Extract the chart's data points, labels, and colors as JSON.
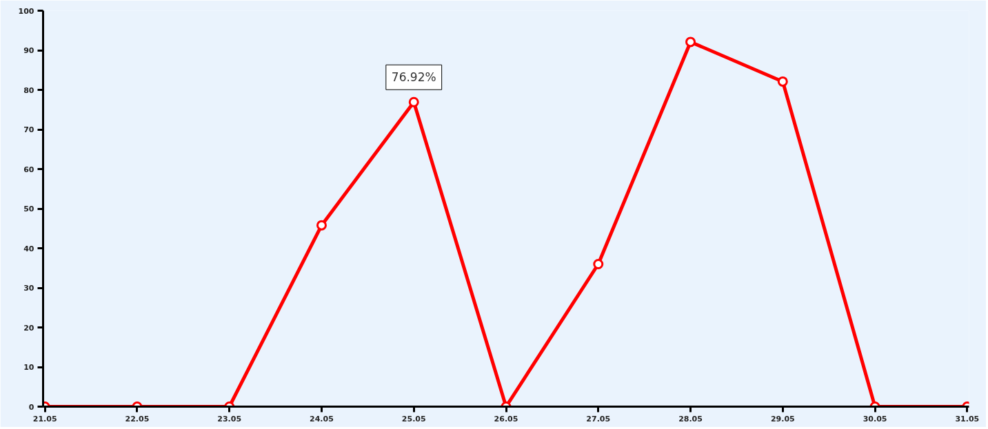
{
  "chart_data": {
    "type": "line",
    "categories": [
      "21.05",
      "22.05",
      "23.05",
      "24.05",
      "25.05",
      "26.05",
      "27.05",
      "28.05",
      "29.05",
      "30.05",
      "31.05"
    ],
    "series": [
      {
        "color": "#ff0000",
        "values": [
          0,
          0,
          0,
          45.8,
          76.92,
          0,
          36.0,
          92.1,
          82.1,
          0,
          0
        ]
      }
    ],
    "ylim": [
      0,
      100
    ],
    "yticks": [
      0,
      10,
      20,
      30,
      40,
      50,
      60,
      70,
      80,
      90,
      100
    ],
    "annotations": [
      {
        "text": "76.92%",
        "x": "25.05",
        "y": 76.92
      }
    ],
    "grid": false,
    "marker": "circle",
    "line_style": "solid"
  }
}
